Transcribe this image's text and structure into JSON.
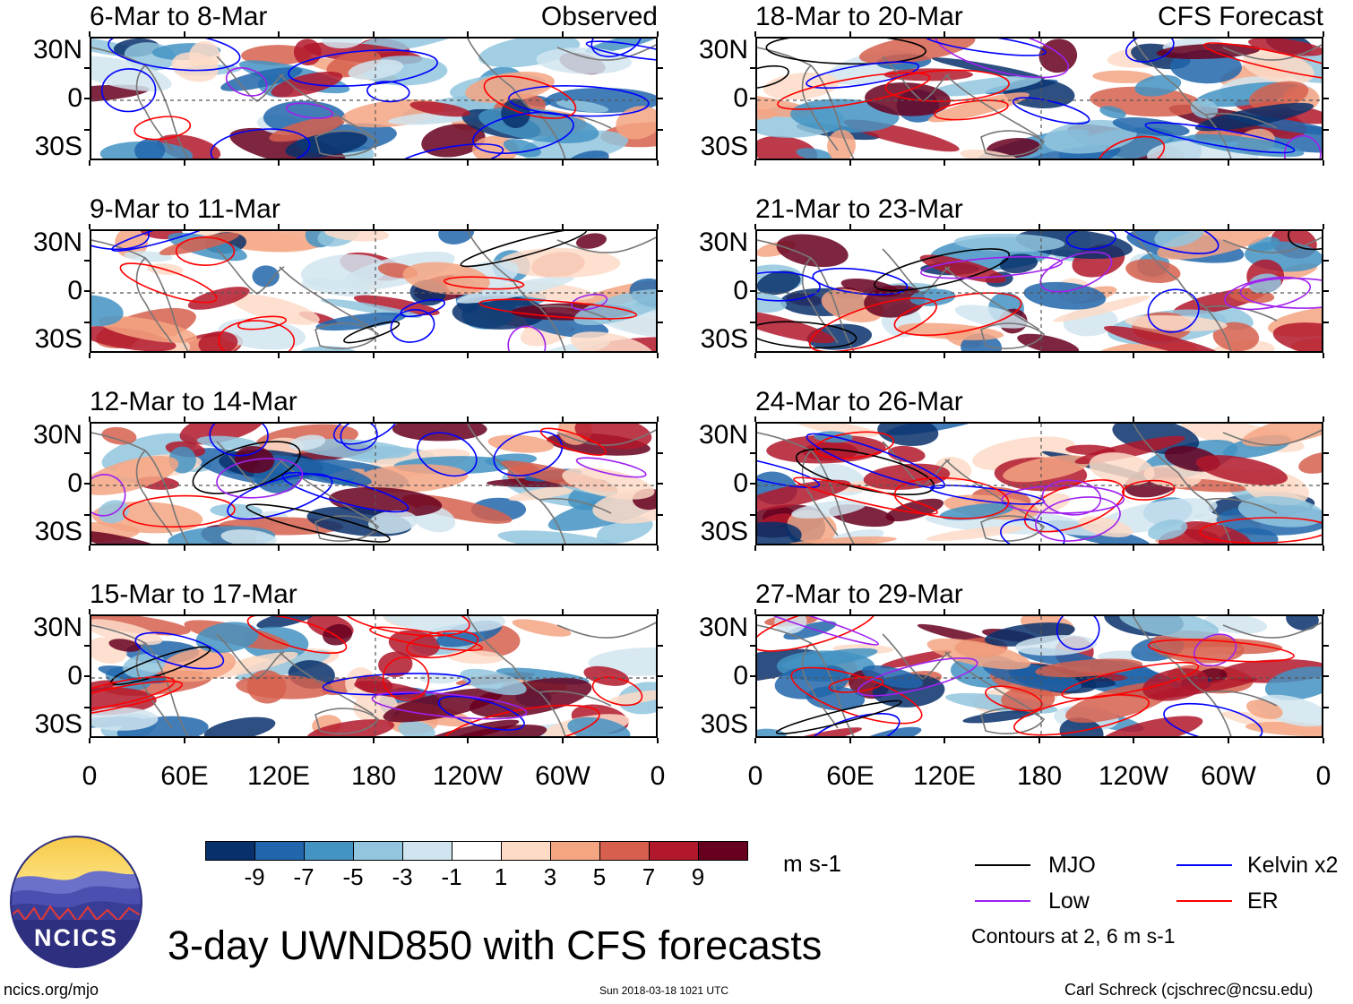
{
  "panels_left": [
    {
      "period": "6-Mar to 8-Mar",
      "tag": "Observed"
    },
    {
      "period": "9-Mar to 11-Mar",
      "tag": ""
    },
    {
      "period": "12-Mar to 14-Mar",
      "tag": ""
    },
    {
      "period": "15-Mar to 17-Mar",
      "tag": ""
    }
  ],
  "panels_right": [
    {
      "period": "18-Mar to 20-Mar",
      "tag": "CFS Forecast"
    },
    {
      "period": "21-Mar to 23-Mar",
      "tag": ""
    },
    {
      "period": "24-Mar to 26-Mar",
      "tag": ""
    },
    {
      "period": "27-Mar to 29-Mar",
      "tag": ""
    }
  ],
  "lat_labels": [
    "30N",
    "0",
    "30S"
  ],
  "lon_labels": [
    "0",
    "60E",
    "120E",
    "180",
    "120W",
    "60W",
    "0"
  ],
  "colorbar": {
    "labels": [
      "-9",
      "-7",
      "-5",
      "-3",
      "-1",
      "1",
      "3",
      "5",
      "7",
      "9"
    ],
    "colors": [
      "#08306b",
      "#2166ac",
      "#4393c3",
      "#92c5de",
      "#d1e5f0",
      "#ffffff",
      "#fddbc7",
      "#f4a582",
      "#d6604d",
      "#b2182b",
      "#67001f"
    ],
    "units": "m s-1"
  },
  "legend": {
    "items": [
      {
        "label": "MJO",
        "color": "#000000"
      },
      {
        "label": "Kelvin x2",
        "color": "#0000ff"
      },
      {
        "label": "Low",
        "color": "#a020f0"
      },
      {
        "label": "ER",
        "color": "#ff0000"
      }
    ],
    "note": "Contours at 2, 6 m s-1"
  },
  "title": "3-day UWND850 with CFS forecasts",
  "logo_text": "NCICS",
  "url": "ncics.org/mjo",
  "timestamp": "Sun 2018-03-18 1021 UTC",
  "author": "Carl Schreck (cjschrec@ncsu.edu)"
}
